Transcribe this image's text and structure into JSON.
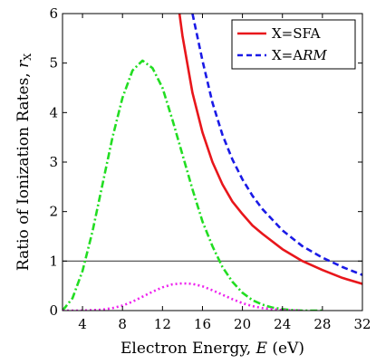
{
  "chart_data": {
    "type": "line",
    "xlabel": {
      "main": "Electron Energy, ",
      "var": "E",
      "unit": " (eV)"
    },
    "ylabel": {
      "main": "Ratio of Ionization Rates, ",
      "var": "r",
      "sub": "X"
    },
    "xlim": [
      2,
      32
    ],
    "ylim": [
      0,
      6
    ],
    "xticks": [
      "4",
      "8",
      "12",
      "16",
      "20",
      "24",
      "28",
      "32"
    ],
    "yticks": [
      "0",
      "1",
      "2",
      "3",
      "4",
      "5",
      "6"
    ],
    "legend": {
      "placement": "top-right",
      "entries": [
        {
          "prefix": "X=",
          "label": "SFA"
        },
        {
          "prefix": "X=A",
          "label": "RM"
        }
      ]
    },
    "series": [
      {
        "name": "X=SFA",
        "color": "#e8161b",
        "style": "solid",
        "x": [
          13.7,
          14,
          15,
          16,
          17,
          18,
          19,
          20,
          21,
          22,
          24,
          26,
          28,
          30,
          32
        ],
        "y": [
          6.0,
          5.55,
          4.4,
          3.6,
          3.0,
          2.55,
          2.2,
          1.95,
          1.72,
          1.55,
          1.24,
          1.0,
          0.82,
          0.66,
          0.54
        ]
      },
      {
        "name": "X=ARM",
        "color": "#1a1ae6",
        "style": "dashed",
        "x": [
          15.0,
          16,
          17,
          18,
          19,
          20,
          21,
          22,
          24,
          26,
          28,
          30,
          32
        ],
        "y": [
          6.0,
          5.05,
          4.2,
          3.55,
          3.05,
          2.65,
          2.32,
          2.05,
          1.62,
          1.3,
          1.07,
          0.88,
          0.72
        ]
      },
      {
        "color": "#22dd22",
        "style": "dashdot",
        "x": [
          2,
          3,
          4,
          5,
          6,
          7,
          8,
          9,
          10,
          11,
          12,
          13,
          14,
          15,
          16,
          17,
          18,
          19,
          20,
          21,
          22,
          23,
          24,
          25,
          26,
          28
        ],
        "y": [
          0.0,
          0.25,
          0.8,
          1.6,
          2.55,
          3.5,
          4.3,
          4.85,
          5.05,
          4.9,
          4.5,
          3.85,
          3.15,
          2.45,
          1.8,
          1.3,
          0.88,
          0.58,
          0.36,
          0.21,
          0.12,
          0.06,
          0.03,
          0.01,
          0.0,
          0.0
        ]
      },
      {
        "color": "#ee22ee",
        "style": "dotted",
        "x": [
          2,
          4,
          6,
          7,
          8,
          9,
          10,
          11,
          12,
          13,
          14,
          15,
          16,
          17,
          18,
          19,
          20,
          21,
          22,
          24,
          26
        ],
        "y": [
          0.0,
          0.0,
          0.02,
          0.05,
          0.1,
          0.18,
          0.28,
          0.38,
          0.47,
          0.53,
          0.55,
          0.54,
          0.49,
          0.41,
          0.32,
          0.23,
          0.15,
          0.09,
          0.05,
          0.01,
          0.0
        ]
      }
    ],
    "reference_line": {
      "y": 1,
      "color": "#444444"
    }
  }
}
